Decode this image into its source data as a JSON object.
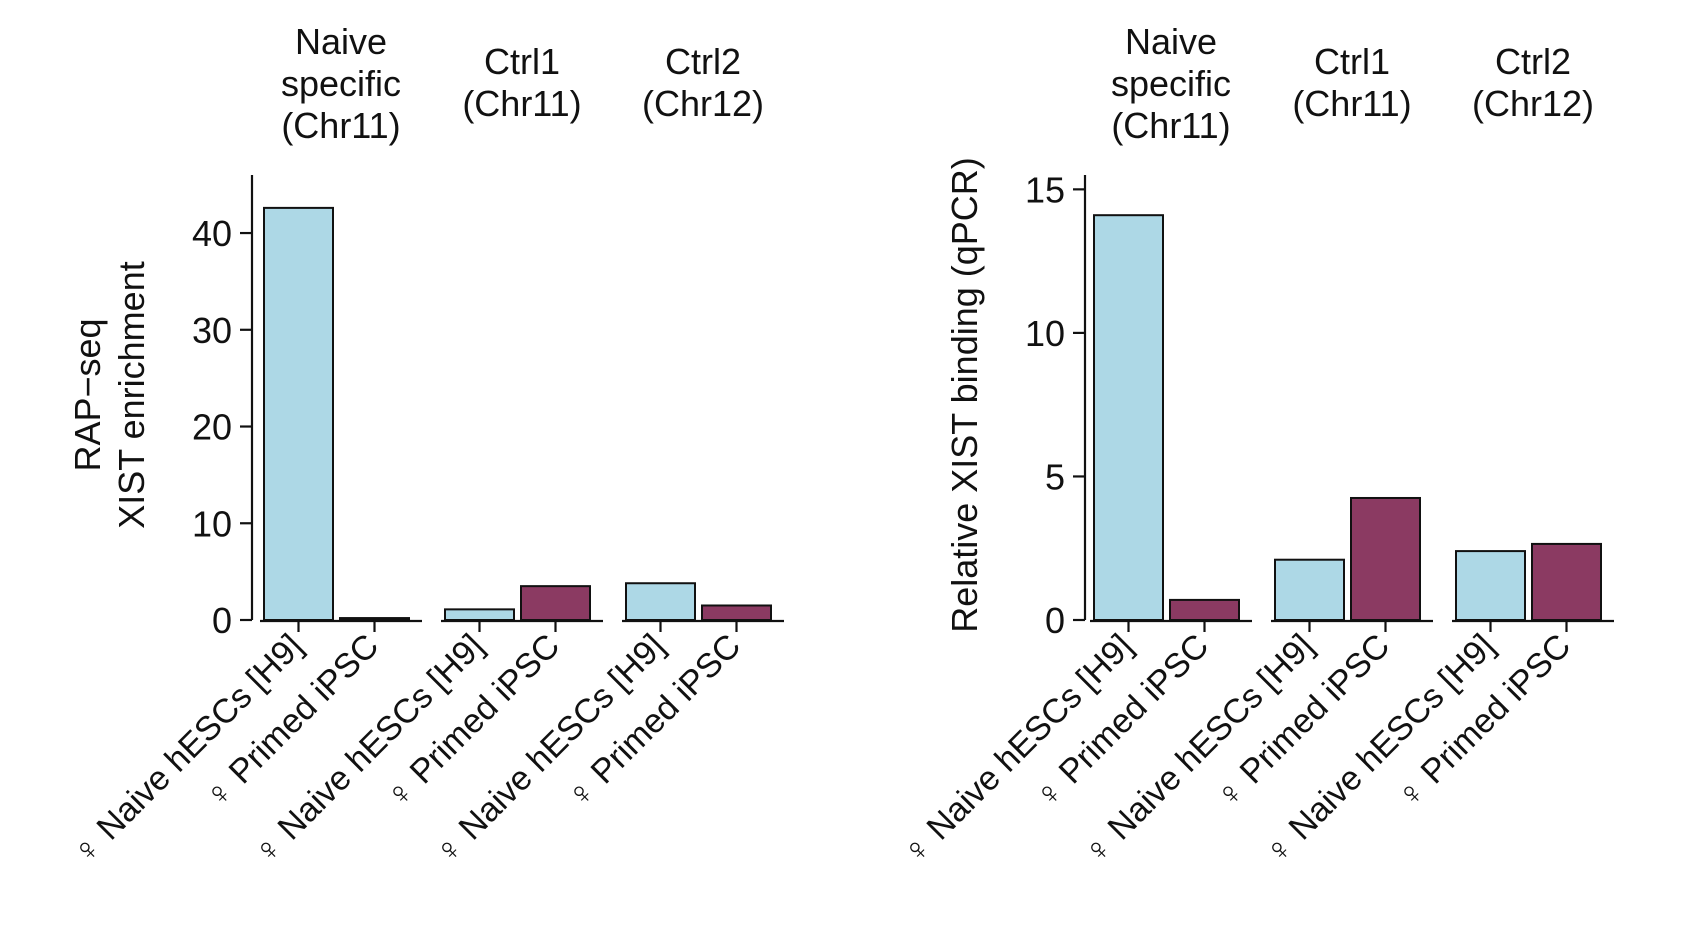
{
  "chart_data": [
    {
      "type": "bar",
      "ylabel_lines": [
        "RAP−seq",
        "XIST enrichment"
      ],
      "ylim": [
        0,
        46
      ],
      "yticks": [
        0,
        10,
        20,
        30,
        40
      ],
      "groups": [
        {
          "label_lines": [
            "Naive",
            "specific",
            "(Chr11)"
          ],
          "bars": [
            {
              "category": "♀ Naive hESCs [H9]",
              "value": 42.6,
              "color": "#add8e6"
            },
            {
              "category": "♀ Primed iPSC",
              "value": 0.2,
              "color": "#8b3a62"
            }
          ]
        },
        {
          "label_lines": [
            "Ctrl1",
            "(Chr11)"
          ],
          "bars": [
            {
              "category": "♀ Naive hESCs [H9]",
              "value": 1.1,
              "color": "#add8e6"
            },
            {
              "category": "♀ Primed iPSC",
              "value": 3.5,
              "color": "#8b3a62"
            }
          ]
        },
        {
          "label_lines": [
            "Ctrl2",
            "(Chr12)"
          ],
          "bars": [
            {
              "category": "♀ Naive hESCs [H9]",
              "value": 3.8,
              "color": "#add8e6"
            },
            {
              "category": "♀ Primed iPSC",
              "value": 1.5,
              "color": "#8b3a62"
            }
          ]
        }
      ]
    },
    {
      "type": "bar",
      "ylabel_lines": [
        "Relative XIST binding (qPCR)"
      ],
      "ylim": [
        0,
        15.5
      ],
      "yticks": [
        0,
        5,
        10,
        15
      ],
      "groups": [
        {
          "label_lines": [
            "Naive",
            "specific",
            "(Chr11)"
          ],
          "bars": [
            {
              "category": "♀ Naive hESCs [H9]",
              "value": 14.1,
              "color": "#add8e6"
            },
            {
              "category": "♀ Primed iPSC",
              "value": 0.7,
              "color": "#8b3a62"
            }
          ]
        },
        {
          "label_lines": [
            "Ctrl1",
            "(Chr11)"
          ],
          "bars": [
            {
              "category": "♀ Naive hESCs [H9]",
              "value": 2.1,
              "color": "#add8e6"
            },
            {
              "category": "♀ Primed iPSC",
              "value": 4.25,
              "color": "#8b3a62"
            }
          ]
        },
        {
          "label_lines": [
            "Ctrl2",
            "(Chr12)"
          ],
          "bars": [
            {
              "category": "♀ Naive hESCs [H9]",
              "value": 2.4,
              "color": "#add8e6"
            },
            {
              "category": "♀ Primed iPSC",
              "value": 2.65,
              "color": "#8b3a62"
            }
          ]
        }
      ]
    }
  ]
}
